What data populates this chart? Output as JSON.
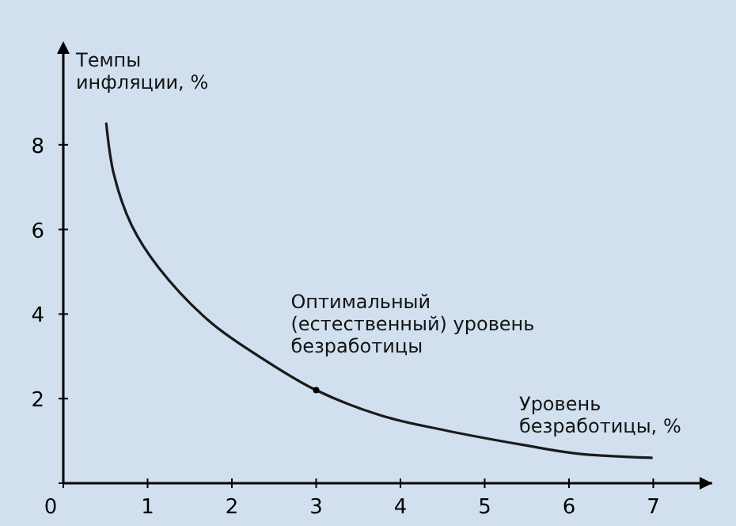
{
  "chart_data": {
    "type": "line",
    "xlabel": "Уровень\nбезработицы, %",
    "ylabel": "Темпы\nинфляции, %",
    "x": [
      0.51,
      0.6,
      0.81,
      1.13,
      1.75,
      2.4,
      3.0,
      3.77,
      4.53,
      5.47,
      6.1,
      6.98
    ],
    "series": [
      {
        "color": "#1a1a1a",
        "values": [
          8.5,
          7.3,
          6.1,
          5.1,
          3.8,
          2.9,
          2.2,
          1.6,
          1.25,
          0.9,
          0.7,
          0.6
        ]
      }
    ],
    "xlim": [
      0,
      7.7
    ],
    "ylim": [
      0,
      10.3
    ],
    "xticks": [
      0,
      1,
      2,
      3,
      4,
      5,
      6,
      7
    ],
    "yticks": [
      {
        "value": 0,
        "label": null
      },
      2,
      4,
      6,
      8
    ],
    "annotations": [
      {
        "text": "Оптимальный\n(естественный) уровень\nбезработицы",
        "x": 3,
        "y": 2.2
      }
    ],
    "grid": false,
    "marker": "none",
    "line_style": "solid"
  }
}
